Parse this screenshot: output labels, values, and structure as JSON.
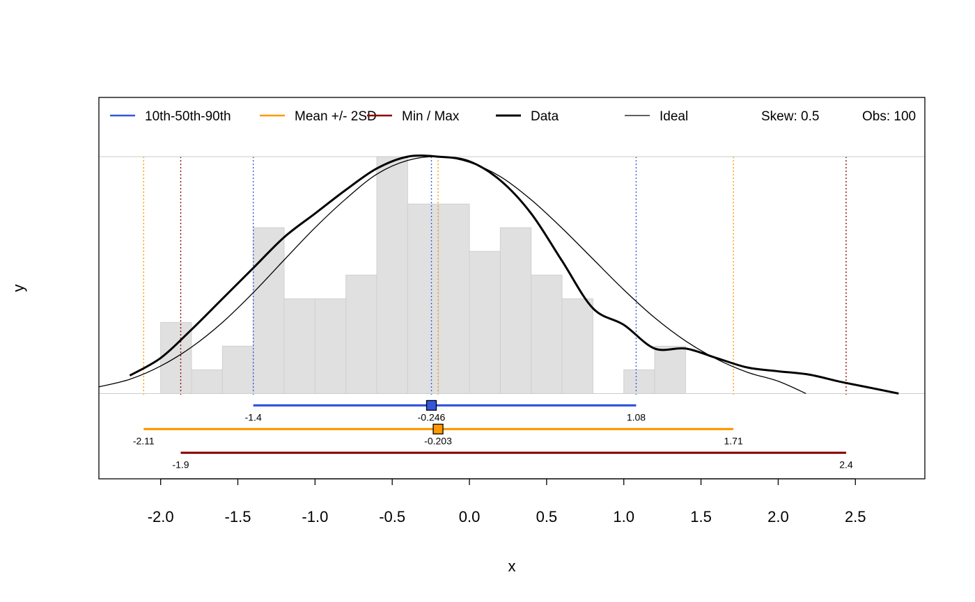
{
  "chart_data": {
    "type": "bar",
    "title": "",
    "xlabel": "x",
    "ylabel": "y",
    "xlim": [
      -2.4,
      2.95
    ],
    "ylim": [
      -0.18,
      0.625
    ],
    "x_ticks": [
      "-2.0",
      "-1.5",
      "-1.0",
      "-0.5",
      "0.0",
      "0.5",
      "1.0",
      "1.5",
      "2.0",
      "2.5"
    ],
    "x_tick_values": [
      -2.0,
      -1.5,
      -1.0,
      -0.5,
      0.0,
      0.5,
      1.0,
      1.5,
      2.0,
      2.5
    ],
    "histogram": {
      "bins": [
        {
          "x0": -2.0,
          "x1": -1.8,
          "density": 0.15
        },
        {
          "x0": -1.8,
          "x1": -1.6,
          "density": 0.05
        },
        {
          "x0": -1.6,
          "x1": -1.4,
          "density": 0.1
        },
        {
          "x0": -1.4,
          "x1": -1.2,
          "density": 0.35
        },
        {
          "x0": -1.2,
          "x1": -1.0,
          "density": 0.2
        },
        {
          "x0": -1.0,
          "x1": -0.8,
          "density": 0.2
        },
        {
          "x0": -0.8,
          "x1": -0.6,
          "density": 0.25
        },
        {
          "x0": -0.6,
          "x1": -0.4,
          "density": 0.5
        },
        {
          "x0": -0.4,
          "x1": -0.2,
          "density": 0.4
        },
        {
          "x0": -0.2,
          "x1": 0.0,
          "density": 0.4
        },
        {
          "x0": 0.0,
          "x1": 0.2,
          "density": 0.3
        },
        {
          "x0": 0.2,
          "x1": 0.4,
          "density": 0.35
        },
        {
          "x0": 0.4,
          "x1": 0.6,
          "density": 0.25
        },
        {
          "x0": 0.6,
          "x1": 0.8,
          "density": 0.2
        },
        {
          "x0": 1.0,
          "x1": 1.2,
          "density": 0.05
        },
        {
          "x0": 1.2,
          "x1": 1.4,
          "density": 0.1
        }
      ],
      "color": "#e0e0e0",
      "border": "#cfcfcf"
    },
    "series": [
      {
        "name": "Data",
        "style": "thick",
        "color": "#000000",
        "x": [
          -2.2,
          -2.0,
          -1.8,
          -1.6,
          -1.4,
          -1.2,
          -1.0,
          -0.8,
          -0.6,
          -0.4,
          -0.2,
          0.0,
          0.2,
          0.4,
          0.6,
          0.8,
          1.0,
          1.2,
          1.4,
          1.6,
          1.8,
          2.0,
          2.2,
          2.4,
          2.6,
          2.78
        ],
        "y": [
          0.038,
          0.075,
          0.135,
          0.2,
          0.265,
          0.33,
          0.38,
          0.43,
          0.475,
          0.5,
          0.5,
          0.49,
          0.45,
          0.38,
          0.28,
          0.18,
          0.145,
          0.095,
          0.095,
          0.075,
          0.055,
          0.047,
          0.04,
          0.025,
          0.012,
          0.0
        ]
      },
      {
        "name": "Ideal",
        "style": "thin",
        "color": "#000000",
        "x": [
          -2.4,
          -2.2,
          -2.0,
          -1.8,
          -1.6,
          -1.4,
          -1.2,
          -1.0,
          -0.8,
          -0.6,
          -0.4,
          -0.2,
          0.0,
          0.2,
          0.4,
          0.6,
          0.8,
          1.0,
          1.2,
          1.4,
          1.6,
          1.8,
          2.0,
          2.18
        ],
        "y": [
          0.014,
          0.03,
          0.058,
          0.098,
          0.15,
          0.213,
          0.282,
          0.35,
          0.411,
          0.463,
          0.492,
          0.5,
          0.488,
          0.458,
          0.409,
          0.349,
          0.284,
          0.219,
          0.16,
          0.111,
          0.073,
          0.045,
          0.026,
          0.0
        ]
      }
    ],
    "vertical_lines": [
      {
        "x": -1.4,
        "color": "#3355dd"
      },
      {
        "x": -0.246,
        "color": "#3355dd"
      },
      {
        "x": 1.08,
        "color": "#3355dd"
      },
      {
        "x": -2.11,
        "color": "#ff9900"
      },
      {
        "x": -0.203,
        "color": "#ff9900"
      },
      {
        "x": 1.71,
        "color": "#ff9900"
      },
      {
        "x": -1.87,
        "color": "#8b0000"
      },
      {
        "x": 2.44,
        "color": "#8b0000"
      }
    ],
    "ranges": [
      {
        "name": "10th-50th-90th",
        "color": "#3355dd",
        "y": -0.025,
        "low": -1.4,
        "mid": -0.246,
        "high": 1.08,
        "low_label": "-1.4",
        "mid_label": "-0.246",
        "high_label": "1.08",
        "marker": true
      },
      {
        "name": "Mean +/- 2SD",
        "color": "#ff9900",
        "y": -0.075,
        "low": -2.11,
        "mid": -0.203,
        "high": 1.71,
        "low_label": "-2.11",
        "mid_label": "-0.203",
        "high_label": "1.71",
        "marker": true
      },
      {
        "name": "Min / Max",
        "color": "#8b0000",
        "y": -0.125,
        "low": -1.87,
        "high": 2.44,
        "low_label": "-1.9",
        "high_label": "2.4",
        "marker": false
      }
    ],
    "legend": {
      "position": "top",
      "items": [
        {
          "label": "10th-50th-90th",
          "color": "#3355dd",
          "style": "line"
        },
        {
          "label": "Mean +/- 2SD",
          "color": "#ff9900",
          "style": "line"
        },
        {
          "label": "Min / Max",
          "color": "#8b0000",
          "style": "line"
        },
        {
          "label": "Data",
          "color": "#000000",
          "style": "thick"
        },
        {
          "label": "Ideal",
          "color": "#000000",
          "style": "thin"
        },
        {
          "label": "Skew: 0.5",
          "style": "text"
        },
        {
          "label": "Obs: 100",
          "style": "text"
        }
      ]
    },
    "grid": false
  }
}
